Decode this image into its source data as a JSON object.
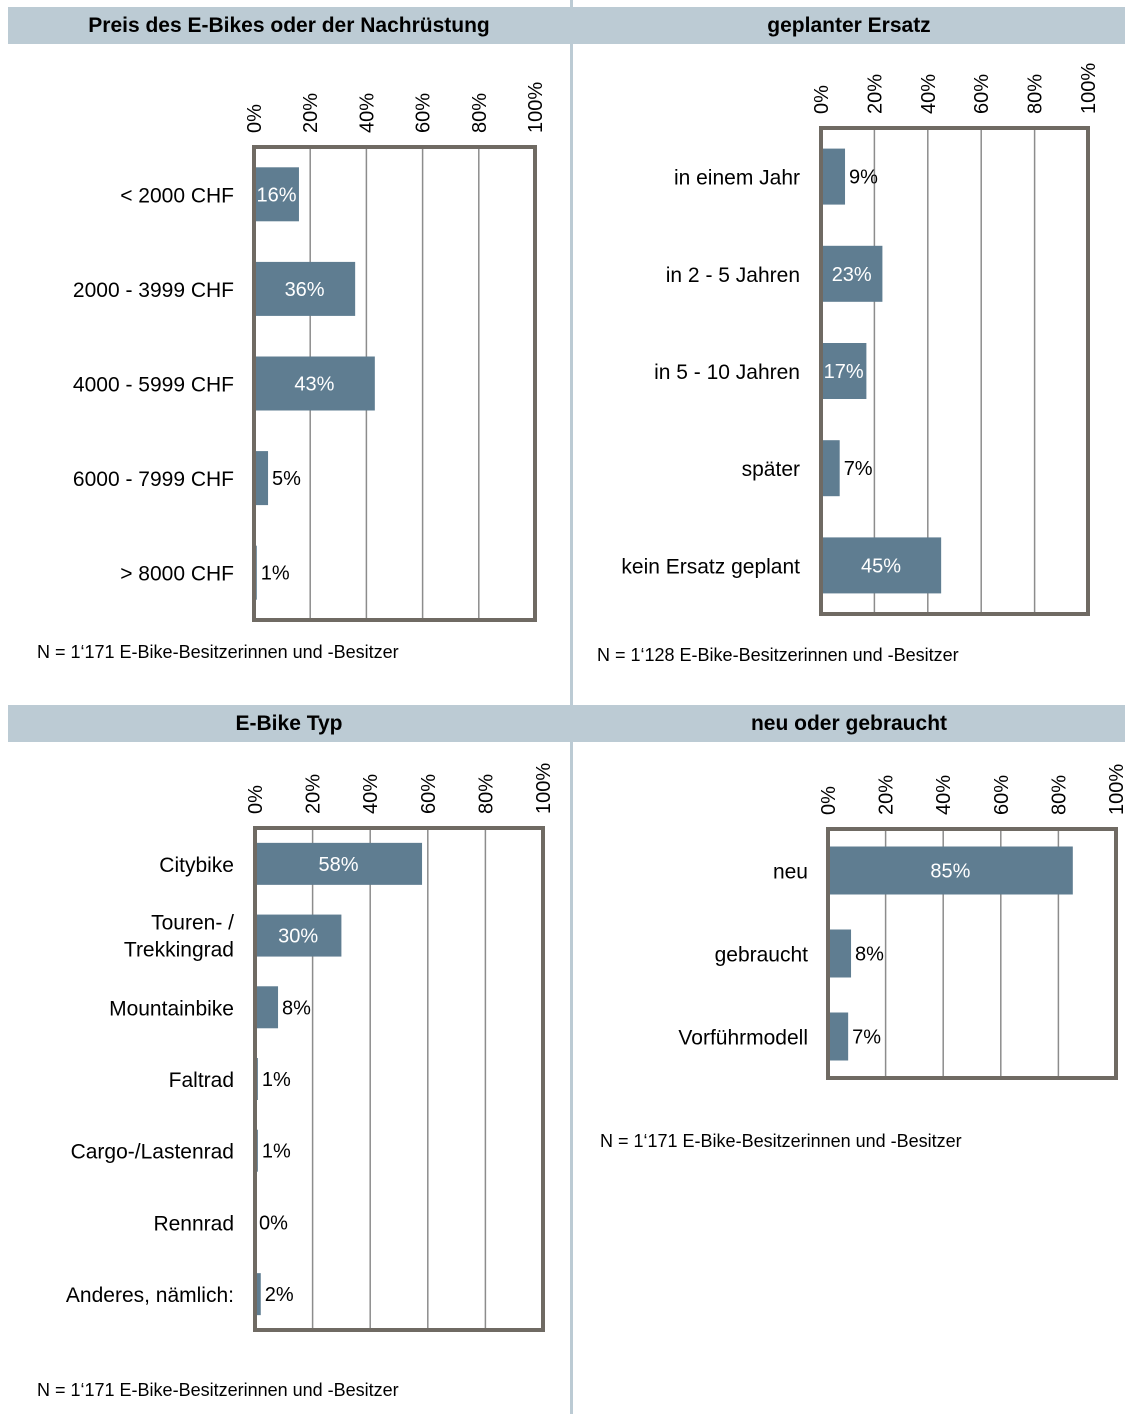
{
  "colors": {
    "bar": "#5f7d91",
    "frame": "#6f6a63",
    "grid": "#8c8c8c",
    "header_bg": "#bccbd4"
  },
  "axis_ticks": [
    "0%",
    "20%",
    "40%",
    "60%",
    "80%",
    "100%"
  ],
  "chart_data": [
    {
      "type": "bar",
      "orientation": "horizontal",
      "title": "Preis des E-Bikes oder der Nachrüstung",
      "categories": [
        "< 2000 CHF",
        "2000 - 3999 CHF",
        "4000 - 5999 CHF",
        "6000 - 7999 CHF",
        "> 8000 CHF"
      ],
      "values": [
        16,
        36,
        43,
        5,
        1
      ],
      "data_labels": [
        "16%",
        "36%",
        "43%",
        "5%",
        "1%"
      ],
      "xlim": [
        0,
        100
      ],
      "grid": true,
      "note": "N = 1‘171 E-Bike-Besitzerinnen und -Besitzer"
    },
    {
      "type": "bar",
      "orientation": "horizontal",
      "title": "geplanter Ersatz",
      "categories": [
        "in einem Jahr",
        "in 2 - 5 Jahren",
        "in 5 - 10 Jahren",
        "später",
        "kein Ersatz geplant"
      ],
      "values": [
        9,
        23,
        17,
        7,
        45
      ],
      "data_labels": [
        "9%",
        "23%",
        "17%",
        "7%",
        "45%"
      ],
      "xlim": [
        0,
        100
      ],
      "grid": true,
      "note": "N = 1‘128 E-Bike-Besitzerinnen und -Besitzer"
    },
    {
      "type": "bar",
      "orientation": "horizontal",
      "title": "E-Bike Typ",
      "categories": [
        "Citybike",
        "Touren- / Trekkingrad",
        "Mountainbike",
        "Faltrad",
        "Cargo-/Lastenrad",
        "Rennrad",
        "Anderes, nämlich:"
      ],
      "values": [
        58,
        30,
        8,
        1,
        1,
        0,
        2
      ],
      "data_labels": [
        "58%",
        "30%",
        "8%",
        "1%",
        "1%",
        "0%",
        "2%"
      ],
      "xlim": [
        0,
        100
      ],
      "grid": true,
      "note": "N = 1‘171 E-Bike-Besitzerinnen und -Besitzer"
    },
    {
      "type": "bar",
      "orientation": "horizontal",
      "title": "neu oder gebraucht",
      "categories": [
        "neu",
        "gebraucht",
        "Vorführmodell"
      ],
      "values": [
        85,
        8,
        7
      ],
      "data_labels": [
        "85%",
        "8%",
        "7%"
      ],
      "xlim": [
        0,
        100
      ],
      "grid": true,
      "note": "N = 1‘171 E-Bike-Besitzerinnen und -Besitzer"
    }
  ]
}
